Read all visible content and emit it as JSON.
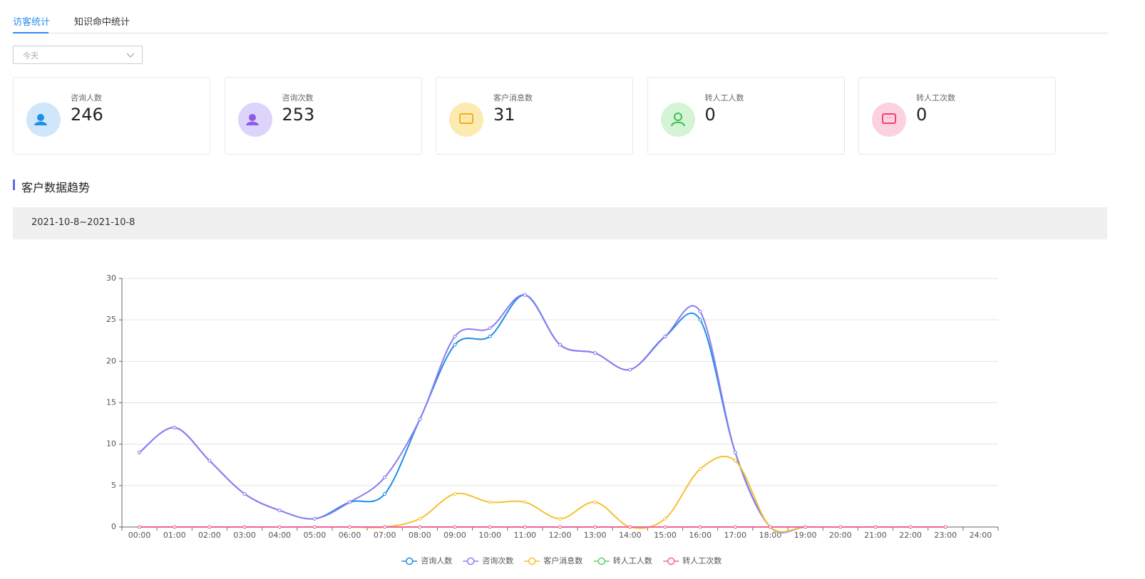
{
  "tabs": [
    "访客统计",
    "知识命中统计"
  ],
  "select": {
    "value": "今天"
  },
  "cards": [
    {
      "label": "咨询人数",
      "value": 246
    },
    {
      "label": "咨询次数",
      "value": 253
    },
    {
      "label": "客户消息数",
      "value": 31
    },
    {
      "label": "转人工人数",
      "value": 0
    },
    {
      "label": "转人工次数",
      "value": 0
    }
  ],
  "section_title": "客户数据趋势",
  "date_range": "2021-10-8~2021-10-8",
  "chart_data": {
    "type": "line",
    "categories": [
      "00:00",
      "01:00",
      "02:00",
      "03:00",
      "04:00",
      "05:00",
      "06:00",
      "07:00",
      "08:00",
      "09:00",
      "10:00",
      "11:00",
      "12:00",
      "13:00",
      "14:00",
      "15:00",
      "16:00",
      "17:00",
      "18:00",
      "19:00",
      "20:00",
      "21:00",
      "22:00",
      "23:00",
      "24:00"
    ],
    "series": [
      {
        "name": "咨询人数",
        "color": "#1f8ee6",
        "values": [
          9,
          12,
          8,
          4,
          2,
          1,
          3,
          4,
          13,
          22,
          23,
          28,
          22,
          21,
          19,
          23,
          25,
          9,
          0,
          0,
          0,
          0,
          0,
          0,
          null
        ]
      },
      {
        "name": "咨询次数",
        "color": "#8c7cf0",
        "values": [
          9,
          12,
          8,
          4,
          2,
          1,
          3,
          6,
          13,
          23,
          24,
          28,
          22,
          21,
          19,
          23,
          26,
          9,
          0,
          0,
          0,
          0,
          0,
          0,
          null
        ]
      },
      {
        "name": "客户消息数",
        "color": "#f5c030",
        "values": [
          0,
          0,
          0,
          0,
          0,
          0,
          0,
          0,
          1,
          4,
          3,
          3,
          1,
          3,
          0,
          1,
          7,
          8,
          0,
          0,
          0,
          0,
          0,
          0,
          null
        ]
      },
      {
        "name": "转人工人数",
        "color": "#5fcf6a",
        "values": [
          0,
          0,
          0,
          0,
          0,
          0,
          0,
          0,
          0,
          0,
          0,
          0,
          0,
          0,
          0,
          0,
          0,
          0,
          0,
          0,
          0,
          0,
          0,
          0,
          null
        ]
      },
      {
        "name": "转人工次数",
        "color": "#f0649a",
        "values": [
          0,
          0,
          0,
          0,
          0,
          0,
          0,
          0,
          0,
          0,
          0,
          0,
          0,
          0,
          0,
          0,
          0,
          0,
          0,
          0,
          0,
          0,
          0,
          0,
          null
        ]
      }
    ],
    "ylim": [
      0,
      30
    ],
    "yticks": [
      0,
      5,
      10,
      15,
      20,
      25,
      30
    ],
    "grid": true,
    "smooth": true,
    "legend": "bottom"
  }
}
